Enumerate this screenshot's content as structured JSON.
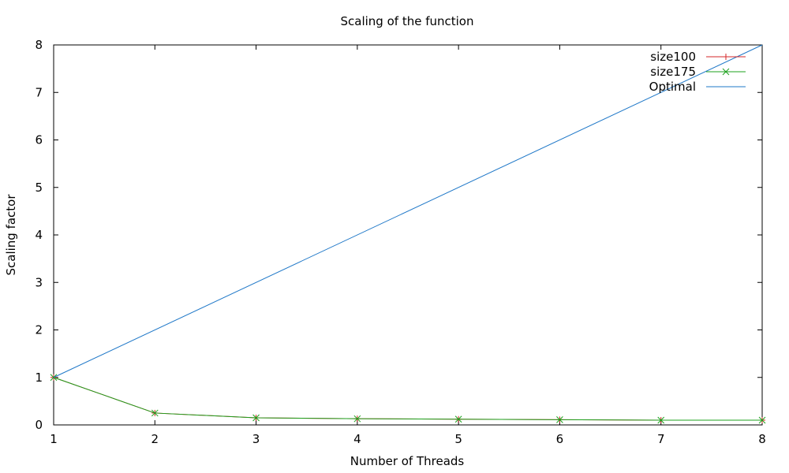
{
  "chart_data": {
    "type": "line",
    "title": "Scaling of the function",
    "xlabel": "Number of Threads",
    "ylabel": "Scaling factor",
    "xlim": [
      1,
      8
    ],
    "ylim": [
      0,
      8
    ],
    "xticks": [
      1,
      2,
      3,
      4,
      5,
      6,
      7,
      8
    ],
    "yticks": [
      0,
      1,
      2,
      3,
      4,
      5,
      6,
      7,
      8
    ],
    "grid": false,
    "legend_position": "top-right",
    "series": [
      {
        "name": "size100",
        "color": "#d62728",
        "marker": "plus",
        "x": [
          1,
          2,
          3,
          4,
          5,
          6,
          7,
          8
        ],
        "y": [
          1,
          0.25,
          0.15,
          0.13,
          0.12,
          0.11,
          0.1,
          0.1
        ]
      },
      {
        "name": "size175",
        "color": "#1ca01c",
        "marker": "cross",
        "x": [
          1,
          2,
          3,
          4,
          5,
          6,
          7,
          8
        ],
        "y": [
          1,
          0.25,
          0.15,
          0.13,
          0.12,
          0.11,
          0.1,
          0.1
        ]
      },
      {
        "name": "Optimal",
        "color": "#1f78c8",
        "marker": "none",
        "x": [
          1,
          8
        ],
        "y": [
          1,
          8
        ]
      }
    ]
  }
}
